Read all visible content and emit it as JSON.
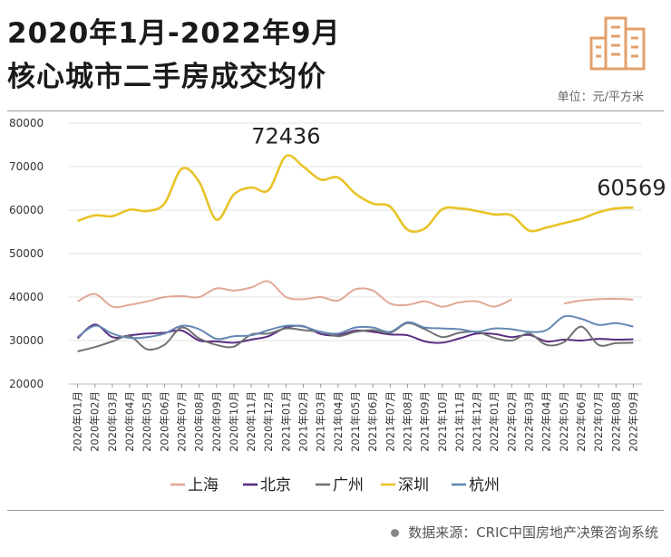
{
  "header": {
    "title_line1": "2020年1月-2022年9月",
    "title_line2": "核心城市二手房成交均价",
    "unit": "单位：元/平方米"
  },
  "source": "数据来源：CRIC中国房地产决策咨询系统",
  "chart_data": {
    "type": "line",
    "title": "2020年1月-2022年9月 核心城市二手房成交均价",
    "ylabel": "元/平方米",
    "ylim": [
      20000,
      80000
    ],
    "yticks": [
      "80000",
      "70000",
      "60000",
      "50000",
      "40000",
      "30000",
      "20000"
    ],
    "grid": true,
    "legend_position": "bottom",
    "categories": [
      "2020年01月",
      "2020年02月",
      "2020年03月",
      "2020年04月",
      "2020年05月",
      "2020年06月",
      "2020年07月",
      "2020年08月",
      "2020年09月",
      "2020年10月",
      "2020年11月",
      "2020年12月",
      "2021年01月",
      "2021年02月",
      "2021年03月",
      "2021年04月",
      "2021年05月",
      "2021年06月",
      "2021年07月",
      "2021年08月",
      "2021年09月",
      "2021年10月",
      "2021年11月",
      "2021年12月",
      "2022年01月",
      "2022年02月",
      "2022年03月",
      "2022年04月",
      "2022年05月",
      "2022年06月",
      "2022年07月",
      "2022年08月",
      "2022年09月"
    ],
    "series": [
      {
        "name": "上海",
        "color": "#e0a896",
        "values": [
          39000,
          40700,
          37800,
          38200,
          39000,
          40000,
          40200,
          40000,
          42000,
          41500,
          42200,
          43600,
          40000,
          39500,
          40000,
          39200,
          41800,
          41500,
          38500,
          38200,
          39000,
          37800,
          38800,
          39000,
          37800,
          39500,
          null,
          null,
          38500,
          39200,
          39500,
          39600,
          39400
        ]
      },
      {
        "name": "北京",
        "color": "#5a2d82",
        "values": [
          30500,
          33700,
          30800,
          31200,
          31600,
          31800,
          32300,
          30000,
          29800,
          29500,
          30200,
          31000,
          33000,
          33300,
          31500,
          31200,
          32300,
          32000,
          31400,
          31200,
          29800,
          29500,
          30500,
          31600,
          31500,
          30800,
          31300,
          29800,
          30200,
          30000,
          30400,
          30200,
          30300
        ]
      },
      {
        "name": "广州",
        "color": "#707070",
        "values": [
          27500,
          28500,
          29800,
          31000,
          28000,
          29000,
          33000,
          30500,
          29000,
          28600,
          31400,
          31600,
          32800,
          32400,
          32000,
          31000,
          32000,
          32400,
          31800,
          34000,
          32600,
          30800,
          31800,
          32000,
          30600,
          30000,
          31600,
          29000,
          29600,
          33200,
          29000,
          29400,
          29500
        ]
      },
      {
        "name": "深圳",
        "color": "#e8c327",
        "values": [
          57500,
          58800,
          58600,
          60100,
          59800,
          61500,
          69500,
          66500,
          57800,
          63600,
          65200,
          64600,
          72436,
          70000,
          67000,
          67500,
          63800,
          61500,
          60800,
          55500,
          55800,
          60200,
          60400,
          59800,
          59000,
          58800,
          55300,
          56000,
          57000,
          58000,
          59500,
          60400,
          60569
        ]
      },
      {
        "name": "杭州",
        "color": "#6388b3",
        "values": [
          30800,
          33400,
          31600,
          30600,
          30800,
          31600,
          33400,
          32600,
          30400,
          31000,
          31200,
          32400,
          33400,
          33200,
          32000,
          31600,
          33000,
          33000,
          32000,
          34200,
          33000,
          32800,
          32600,
          32000,
          32800,
          32600,
          32000,
          32400,
          35500,
          35000,
          33600,
          34000,
          33200
        ]
      }
    ],
    "annotations": [
      {
        "text": "72436",
        "series": "深圳",
        "category": "2021年01月"
      },
      {
        "text": "60569",
        "series": "深圳",
        "category": "2022年09月"
      }
    ]
  }
}
